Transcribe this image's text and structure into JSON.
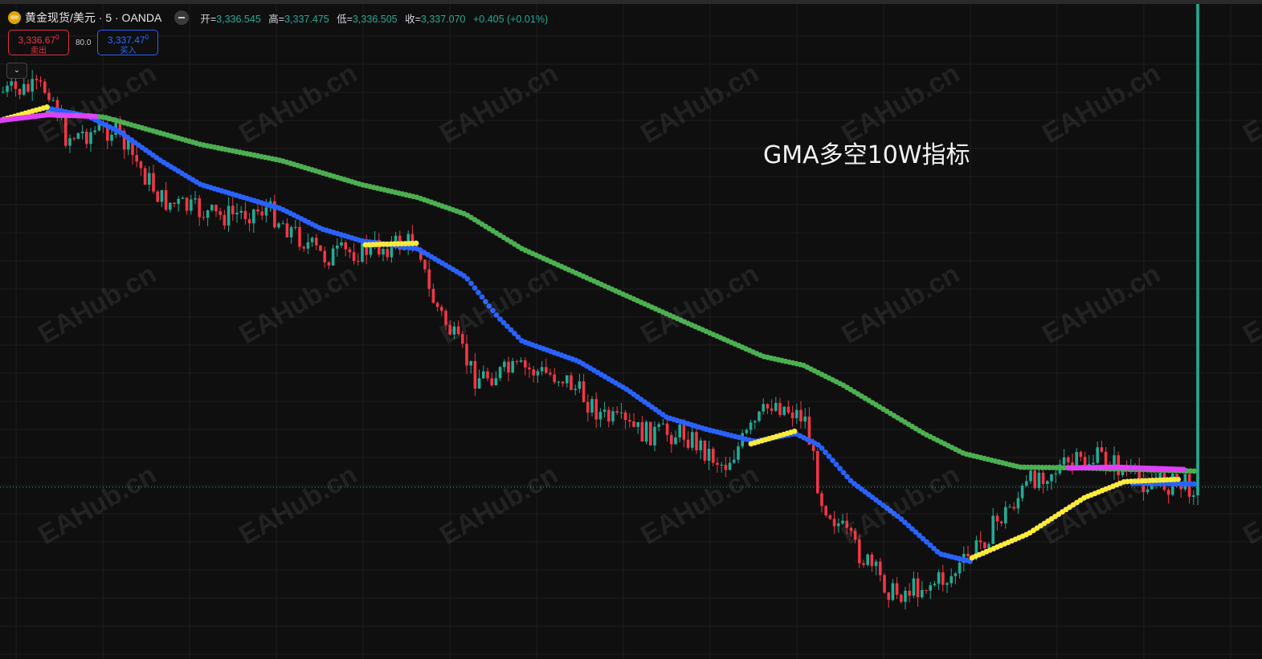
{
  "header": {
    "symbol_title": "黄金现货/美元 · 5 · OANDA",
    "ohlc": [
      {
        "label": "开=",
        "value": "3,336.545"
      },
      {
        "label": "高=",
        "value": "3,337.475"
      },
      {
        "label": "低=",
        "value": "3,336.505"
      },
      {
        "label": "收=",
        "value": "3,337.070"
      }
    ],
    "change": "+0.405 (+0.01%)"
  },
  "trade": {
    "sell_price": "3,336.67",
    "sell_sup": "0",
    "sell_label": "卖出",
    "spread": "80.0",
    "buy_price": "3,337.47",
    "buy_sup": "0",
    "buy_label": "买入"
  },
  "collapse_icon": "chevron-down-icon",
  "chart_annotation": "GMA多空10W指标",
  "watermark": "EAHub.cn",
  "colors": {
    "up": "#22ab94",
    "down": "#f23645",
    "ma_long": "#4caf50",
    "ma_mid_down": "#2962ff",
    "ma_mid_up": "#ffeb3b",
    "ma_fast": "#e040fb",
    "background": "#0f0f0f"
  }
}
